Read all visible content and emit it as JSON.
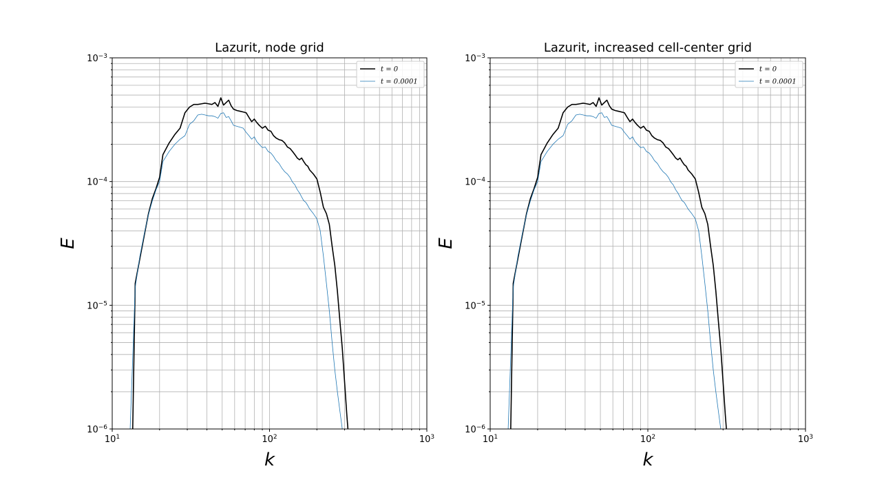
{
  "chart_data": [
    {
      "type": "line",
      "title": "Lazurit, node grid",
      "xlabel": "k",
      "ylabel": "E",
      "xscale": "log",
      "yscale": "log",
      "xlim": [
        10,
        1000
      ],
      "ylim": [
        1e-06,
        0.001
      ],
      "x_ticks": [
        {
          "value": 10,
          "base": "10",
          "exp": "1"
        },
        {
          "value": 100,
          "base": "10",
          "exp": "2"
        },
        {
          "value": 1000,
          "base": "10",
          "exp": "3"
        }
      ],
      "y_ticks": [
        {
          "value": 1e-06,
          "base": "10",
          "exp": "−6"
        },
        {
          "value": 1e-05,
          "base": "10",
          "exp": "−5"
        },
        {
          "value": 0.0001,
          "base": "10",
          "exp": "−4"
        },
        {
          "value": 0.001,
          "base": "10",
          "exp": "−3"
        }
      ],
      "grid": "major and minor",
      "legend_position": "top-right",
      "series": [
        {
          "name": "t = 0",
          "color": "#000000",
          "x": [
            13.5,
            14,
            15,
            16,
            17,
            18,
            19,
            20,
            21,
            23,
            25,
            27,
            29,
            31,
            33,
            35,
            37,
            39,
            41,
            43,
            45,
            47,
            49,
            51,
            53,
            55,
            57,
            59,
            62,
            65,
            68,
            71,
            74,
            77,
            80,
            83,
            86,
            90,
            94,
            98,
            102,
            106,
            110,
            115,
            120,
            125,
            130,
            135,
            140,
            145,
            150,
            155,
            160,
            165,
            170,
            175,
            180,
            190,
            200,
            210,
            220,
            230,
            240,
            250,
            260,
            270,
            280,
            290,
            300,
            310,
            315
          ],
          "y": [
            1e-06,
            1.5e-05,
            2.4e-05,
            3.7e-05,
            5.5e-05,
            7.3e-05,
            8.8e-05,
            0.000108,
            0.000165,
            0.000205,
            0.00024,
            0.00027,
            0.00036,
            0.0004,
            0.00042,
            0.00042,
            0.000425,
            0.00043,
            0.000425,
            0.00042,
            0.000435,
            0.000405,
            0.000475,
            0.000415,
            0.000435,
            0.000455,
            0.00041,
            0.000385,
            0.000375,
            0.00037,
            0.000365,
            0.00036,
            0.00033,
            0.000305,
            0.00032,
            0.0003,
            0.000285,
            0.00027,
            0.00028,
            0.00026,
            0.000255,
            0.000235,
            0.000225,
            0.000218,
            0.000215,
            0.000205,
            0.00019,
            0.000185,
            0.000175,
            0.000165,
            0.000155,
            0.00015,
            0.000155,
            0.000145,
            0.000137,
            0.000133,
            0.000124,
            0.000115,
            0.000105,
            8.2e-05,
            6.2e-05,
            5.5e-05,
            4.5e-05,
            3e-05,
            2.1e-05,
            1.3e-05,
            7.5e-06,
            4.5e-06,
            2.4e-06,
            1.3e-06,
            1e-06
          ]
        },
        {
          "name": "t = 0.0001",
          "color": "#1f77b4",
          "x": [
            13,
            14,
            15,
            16,
            17,
            18,
            19,
            20,
            21,
            23,
            25,
            27,
            29,
            31,
            33,
            35,
            37,
            39,
            41,
            43,
            45,
            47,
            49,
            51,
            53,
            55,
            57,
            59,
            62,
            65,
            68,
            71,
            74,
            77,
            80,
            83,
            86,
            90,
            94,
            98,
            102,
            106,
            110,
            115,
            120,
            125,
            130,
            135,
            140,
            145,
            150,
            155,
            160,
            165,
            170,
            175,
            180,
            190,
            200,
            210,
            220,
            230,
            240,
            250,
            260,
            270,
            280,
            290
          ],
          "y": [
            1e-06,
            1.4e-05,
            2.5e-05,
            3.8e-05,
            5.4e-05,
            7e-05,
            8.6e-05,
            0.0001,
            0.000145,
            0.000175,
            0.0002,
            0.00022,
            0.000235,
            0.00029,
            0.00031,
            0.000345,
            0.00035,
            0.000345,
            0.00034,
            0.00034,
            0.000335,
            0.000325,
            0.000355,
            0.00036,
            0.00033,
            0.000335,
            0.00031,
            0.000285,
            0.00028,
            0.000275,
            0.00027,
            0.00025,
            0.000235,
            0.00022,
            0.00023,
            0.00021,
            0.0002,
            0.000188,
            0.00019,
            0.000175,
            0.00017,
            0.00016,
            0.000148,
            0.00014,
            0.000128,
            0.00012,
            0.000115,
            0.000108,
            9.9e-05,
            9.4e-05,
            8.6e-05,
            8.1e-05,
            7.5e-05,
            7e-05,
            6.8e-05,
            6.4e-05,
            6e-05,
            5.5e-05,
            5e-05,
            4e-05,
            2.5e-05,
            1.5e-05,
            9e-06,
            5e-06,
            3e-06,
            2e-06,
            1.4e-06,
            1e-06
          ]
        }
      ]
    },
    {
      "type": "line",
      "title": "Lazurit, increased cell-center grid",
      "xlabel": "k",
      "ylabel": "E",
      "xscale": "log",
      "yscale": "log",
      "xlim": [
        10,
        1000
      ],
      "ylim": [
        1e-06,
        0.001
      ],
      "x_ticks": [
        {
          "value": 10,
          "base": "10",
          "exp": "1"
        },
        {
          "value": 100,
          "base": "10",
          "exp": "2"
        },
        {
          "value": 1000,
          "base": "10",
          "exp": "3"
        }
      ],
      "y_ticks": [
        {
          "value": 1e-06,
          "base": "10",
          "exp": "−6"
        },
        {
          "value": 1e-05,
          "base": "10",
          "exp": "−5"
        },
        {
          "value": 0.0001,
          "base": "10",
          "exp": "−4"
        },
        {
          "value": 0.001,
          "base": "10",
          "exp": "−3"
        }
      ],
      "grid": "major and minor",
      "legend_position": "top-right",
      "series": [
        {
          "name": "t = 0",
          "color": "#000000",
          "x": [
            13.5,
            14,
            15,
            16,
            17,
            18,
            19,
            20,
            21,
            23,
            25,
            27,
            29,
            31,
            33,
            35,
            37,
            39,
            41,
            43,
            45,
            47,
            49,
            51,
            53,
            55,
            57,
            59,
            62,
            65,
            68,
            71,
            74,
            77,
            80,
            83,
            86,
            90,
            94,
            98,
            102,
            106,
            110,
            115,
            120,
            125,
            130,
            135,
            140,
            145,
            150,
            155,
            160,
            165,
            170,
            175,
            180,
            190,
            200,
            210,
            220,
            230,
            240,
            250,
            260,
            270,
            280,
            290,
            300,
            310,
            315
          ],
          "y": [
            1e-06,
            1.5e-05,
            2.4e-05,
            3.7e-05,
            5.5e-05,
            7.3e-05,
            8.8e-05,
            0.000108,
            0.000165,
            0.000205,
            0.00024,
            0.00027,
            0.00036,
            0.0004,
            0.00042,
            0.00042,
            0.000425,
            0.00043,
            0.000425,
            0.00042,
            0.000435,
            0.000405,
            0.000475,
            0.000415,
            0.000435,
            0.000455,
            0.00041,
            0.000385,
            0.000375,
            0.00037,
            0.000365,
            0.00036,
            0.00033,
            0.000305,
            0.00032,
            0.0003,
            0.000285,
            0.00027,
            0.00028,
            0.00026,
            0.000255,
            0.000235,
            0.000225,
            0.000218,
            0.000215,
            0.000205,
            0.00019,
            0.000185,
            0.000175,
            0.000165,
            0.000155,
            0.00015,
            0.000155,
            0.000145,
            0.000137,
            0.000133,
            0.000124,
            0.000115,
            0.000105,
            8.2e-05,
            6.2e-05,
            5.5e-05,
            4.5e-05,
            3e-05,
            2.1e-05,
            1.3e-05,
            7.5e-06,
            4.5e-06,
            2.4e-06,
            1.3e-06,
            1e-06
          ]
        },
        {
          "name": "t = 0.0001",
          "color": "#1f77b4",
          "x": [
            13,
            14,
            15,
            16,
            17,
            18,
            19,
            20,
            21,
            23,
            25,
            27,
            29,
            31,
            33,
            35,
            37,
            39,
            41,
            43,
            45,
            47,
            49,
            51,
            53,
            55,
            57,
            59,
            62,
            65,
            68,
            71,
            74,
            77,
            80,
            83,
            86,
            90,
            94,
            98,
            102,
            106,
            110,
            115,
            120,
            125,
            130,
            135,
            140,
            145,
            150,
            155,
            160,
            165,
            170,
            175,
            180,
            190,
            200,
            210,
            220,
            230,
            240,
            250,
            260,
            270,
            280,
            290
          ],
          "y": [
            1e-06,
            1.4e-05,
            2.5e-05,
            3.8e-05,
            5.4e-05,
            7e-05,
            8.6e-05,
            0.0001,
            0.000145,
            0.000175,
            0.0002,
            0.00022,
            0.000235,
            0.00029,
            0.00031,
            0.000345,
            0.00035,
            0.000345,
            0.00034,
            0.00034,
            0.000335,
            0.000325,
            0.000355,
            0.00036,
            0.00033,
            0.000335,
            0.00031,
            0.000285,
            0.00028,
            0.000275,
            0.00027,
            0.00025,
            0.000235,
            0.00022,
            0.00023,
            0.00021,
            0.0002,
            0.000188,
            0.00019,
            0.000175,
            0.00017,
            0.00016,
            0.000148,
            0.00014,
            0.000128,
            0.00012,
            0.000115,
            0.000108,
            9.9e-05,
            9.4e-05,
            8.6e-05,
            8.1e-05,
            7.5e-05,
            7e-05,
            6.8e-05,
            6.4e-05,
            6e-05,
            5.5e-05,
            5e-05,
            4e-05,
            2.5e-05,
            1.5e-05,
            9e-06,
            5e-06,
            3e-06,
            2e-06,
            1.4e-06,
            1e-06
          ]
        }
      ]
    }
  ]
}
